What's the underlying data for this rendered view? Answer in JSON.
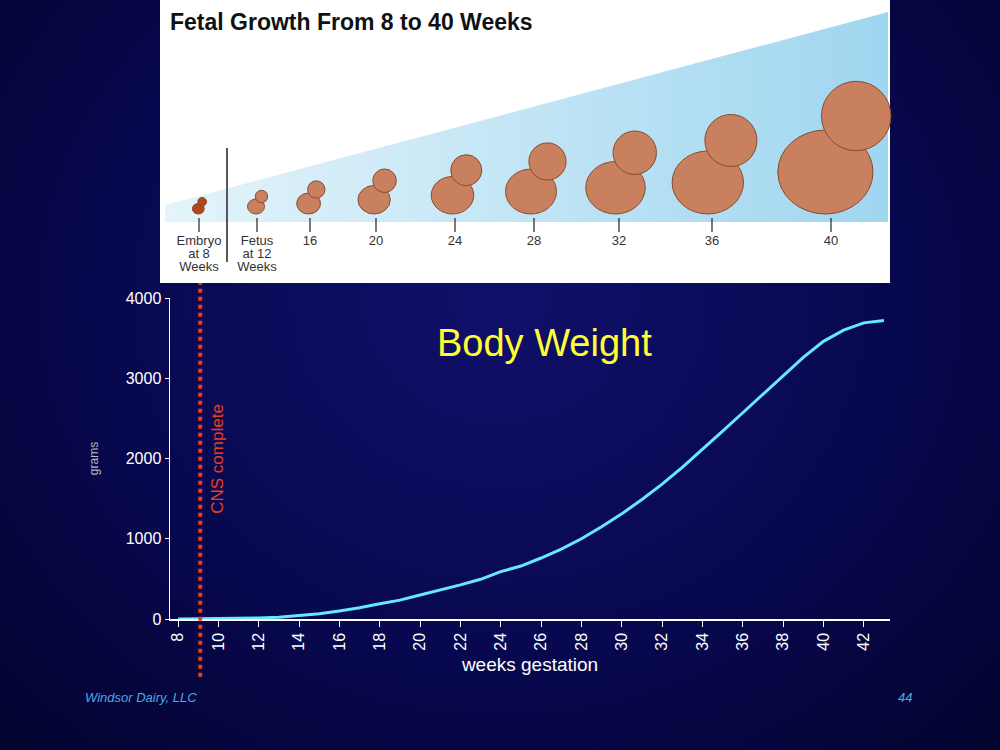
{
  "chart_data": {
    "type": "line",
    "title": "Body Weight",
    "x": [
      8,
      9,
      10,
      11,
      12,
      13,
      14,
      15,
      16,
      17,
      18,
      19,
      20,
      21,
      22,
      23,
      24,
      25,
      26,
      27,
      28,
      29,
      30,
      31,
      32,
      33,
      34,
      35,
      36,
      37,
      38,
      39,
      40,
      41,
      42,
      43
    ],
    "values": [
      0,
      2,
      4,
      7,
      14,
      23,
      40,
      65,
      100,
      140,
      190,
      235,
      300,
      360,
      425,
      495,
      590,
      660,
      760,
      870,
      1000,
      1150,
      1310,
      1490,
      1680,
      1890,
      2110,
      2340,
      2570,
      2800,
      3030,
      3260,
      3460,
      3600,
      3690,
      3720
    ],
    "color": "#66e8ff",
    "xlabel": "weeks gestation",
    "ylabel": "grams",
    "xlim": [
      7.6,
      43.3
    ],
    "ylim": [
      0,
      4000
    ],
    "xticks": [
      8,
      10,
      12,
      14,
      16,
      18,
      20,
      22,
      24,
      26,
      28,
      30,
      32,
      34,
      36,
      38,
      40,
      42
    ],
    "yticks": [
      0,
      1000,
      2000,
      3000,
      4000
    ],
    "grid": false,
    "annotations": [
      {
        "text": "CNS complete",
        "x": 9.1,
        "color": "#e8401c",
        "line_style": "dotted"
      }
    ]
  },
  "illustration": {
    "title": "Fetal Growth From 8 to 40 Weeks",
    "labels": [
      [
        "Embryo",
        "at 8",
        "Weeks"
      ],
      [
        "Fetus",
        "at 12",
        "Weeks"
      ],
      [
        "16"
      ],
      [
        "20"
      ],
      [
        "24"
      ],
      [
        "28"
      ],
      [
        "32"
      ],
      [
        "36"
      ],
      [
        "40"
      ]
    ]
  },
  "footer": {
    "source": "Windsor Dairy, LLC",
    "page": "44"
  }
}
